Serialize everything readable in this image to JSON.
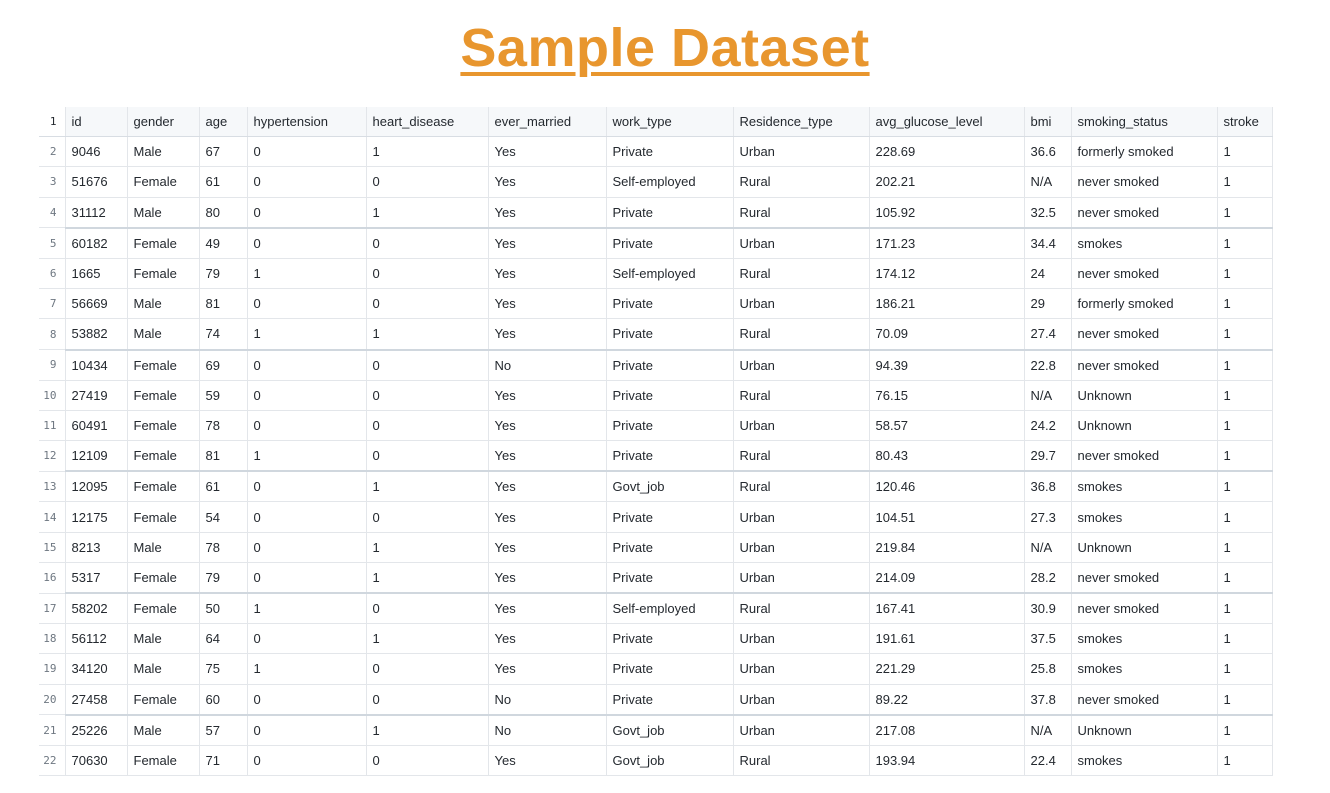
{
  "page": {
    "title": "Sample Dataset",
    "accent_color": "#e8962e"
  },
  "table": {
    "columns": [
      "id",
      "gender",
      "age",
      "hypertension",
      "heart_disease",
      "ever_married",
      "work_type",
      "Residence_type",
      "avg_glucose_level",
      "bmi",
      "smoking_status",
      "stroke"
    ],
    "line_numbers": [
      "1",
      "2",
      "3",
      "4",
      "5",
      "6",
      "7",
      "8",
      "9",
      "10",
      "11",
      "12",
      "13",
      "14",
      "15",
      "16",
      "17",
      "18",
      "19",
      "20",
      "21",
      "22"
    ],
    "rows": [
      [
        "9046",
        "Male",
        "67",
        "0",
        "1",
        "Yes",
        "Private",
        "Urban",
        "228.69",
        "36.6",
        "formerly smoked",
        "1"
      ],
      [
        "51676",
        "Female",
        "61",
        "0",
        "0",
        "Yes",
        "Self-employed",
        "Rural",
        "202.21",
        "N/A",
        "never smoked",
        "1"
      ],
      [
        "31112",
        "Male",
        "80",
        "0",
        "1",
        "Yes",
        "Private",
        "Rural",
        "105.92",
        "32.5",
        "never smoked",
        "1"
      ],
      [
        "60182",
        "Female",
        "49",
        "0",
        "0",
        "Yes",
        "Private",
        "Urban",
        "171.23",
        "34.4",
        "smokes",
        "1"
      ],
      [
        "1665",
        "Female",
        "79",
        "1",
        "0",
        "Yes",
        "Self-employed",
        "Rural",
        "174.12",
        "24",
        "never smoked",
        "1"
      ],
      [
        "56669",
        "Male",
        "81",
        "0",
        "0",
        "Yes",
        "Private",
        "Urban",
        "186.21",
        "29",
        "formerly smoked",
        "1"
      ],
      [
        "53882",
        "Male",
        "74",
        "1",
        "1",
        "Yes",
        "Private",
        "Rural",
        "70.09",
        "27.4",
        "never smoked",
        "1"
      ],
      [
        "10434",
        "Female",
        "69",
        "0",
        "0",
        "No",
        "Private",
        "Urban",
        "94.39",
        "22.8",
        "never smoked",
        "1"
      ],
      [
        "27419",
        "Female",
        "59",
        "0",
        "0",
        "Yes",
        "Private",
        "Rural",
        "76.15",
        "N/A",
        "Unknown",
        "1"
      ],
      [
        "60491",
        "Female",
        "78",
        "0",
        "0",
        "Yes",
        "Private",
        "Urban",
        "58.57",
        "24.2",
        "Unknown",
        "1"
      ],
      [
        "12109",
        "Female",
        "81",
        "1",
        "0",
        "Yes",
        "Private",
        "Rural",
        "80.43",
        "29.7",
        "never smoked",
        "1"
      ],
      [
        "12095",
        "Female",
        "61",
        "0",
        "1",
        "Yes",
        "Govt_job",
        "Rural",
        "120.46",
        "36.8",
        "smokes",
        "1"
      ],
      [
        "12175",
        "Female",
        "54",
        "0",
        "0",
        "Yes",
        "Private",
        "Urban",
        "104.51",
        "27.3",
        "smokes",
        "1"
      ],
      [
        "8213",
        "Male",
        "78",
        "0",
        "1",
        "Yes",
        "Private",
        "Urban",
        "219.84",
        "N/A",
        "Unknown",
        "1"
      ],
      [
        "5317",
        "Female",
        "79",
        "0",
        "1",
        "Yes",
        "Private",
        "Urban",
        "214.09",
        "28.2",
        "never smoked",
        "1"
      ],
      [
        "58202",
        "Female",
        "50",
        "1",
        "0",
        "Yes",
        "Self-employed",
        "Rural",
        "167.41",
        "30.9",
        "never smoked",
        "1"
      ],
      [
        "56112",
        "Male",
        "64",
        "0",
        "1",
        "Yes",
        "Private",
        "Urban",
        "191.61",
        "37.5",
        "smokes",
        "1"
      ],
      [
        "34120",
        "Male",
        "75",
        "1",
        "0",
        "Yes",
        "Private",
        "Urban",
        "221.29",
        "25.8",
        "smokes",
        "1"
      ],
      [
        "27458",
        "Female",
        "60",
        "0",
        "0",
        "No",
        "Private",
        "Urban",
        "89.22",
        "37.8",
        "never smoked",
        "1"
      ],
      [
        "25226",
        "Male",
        "57",
        "0",
        "1",
        "No",
        "Govt_job",
        "Urban",
        "217.08",
        "N/A",
        "Unknown",
        "1"
      ],
      [
        "70630",
        "Female",
        "71",
        "0",
        "0",
        "Yes",
        "Govt_job",
        "Rural",
        "193.94",
        "22.4",
        "smokes",
        "1"
      ]
    ]
  }
}
